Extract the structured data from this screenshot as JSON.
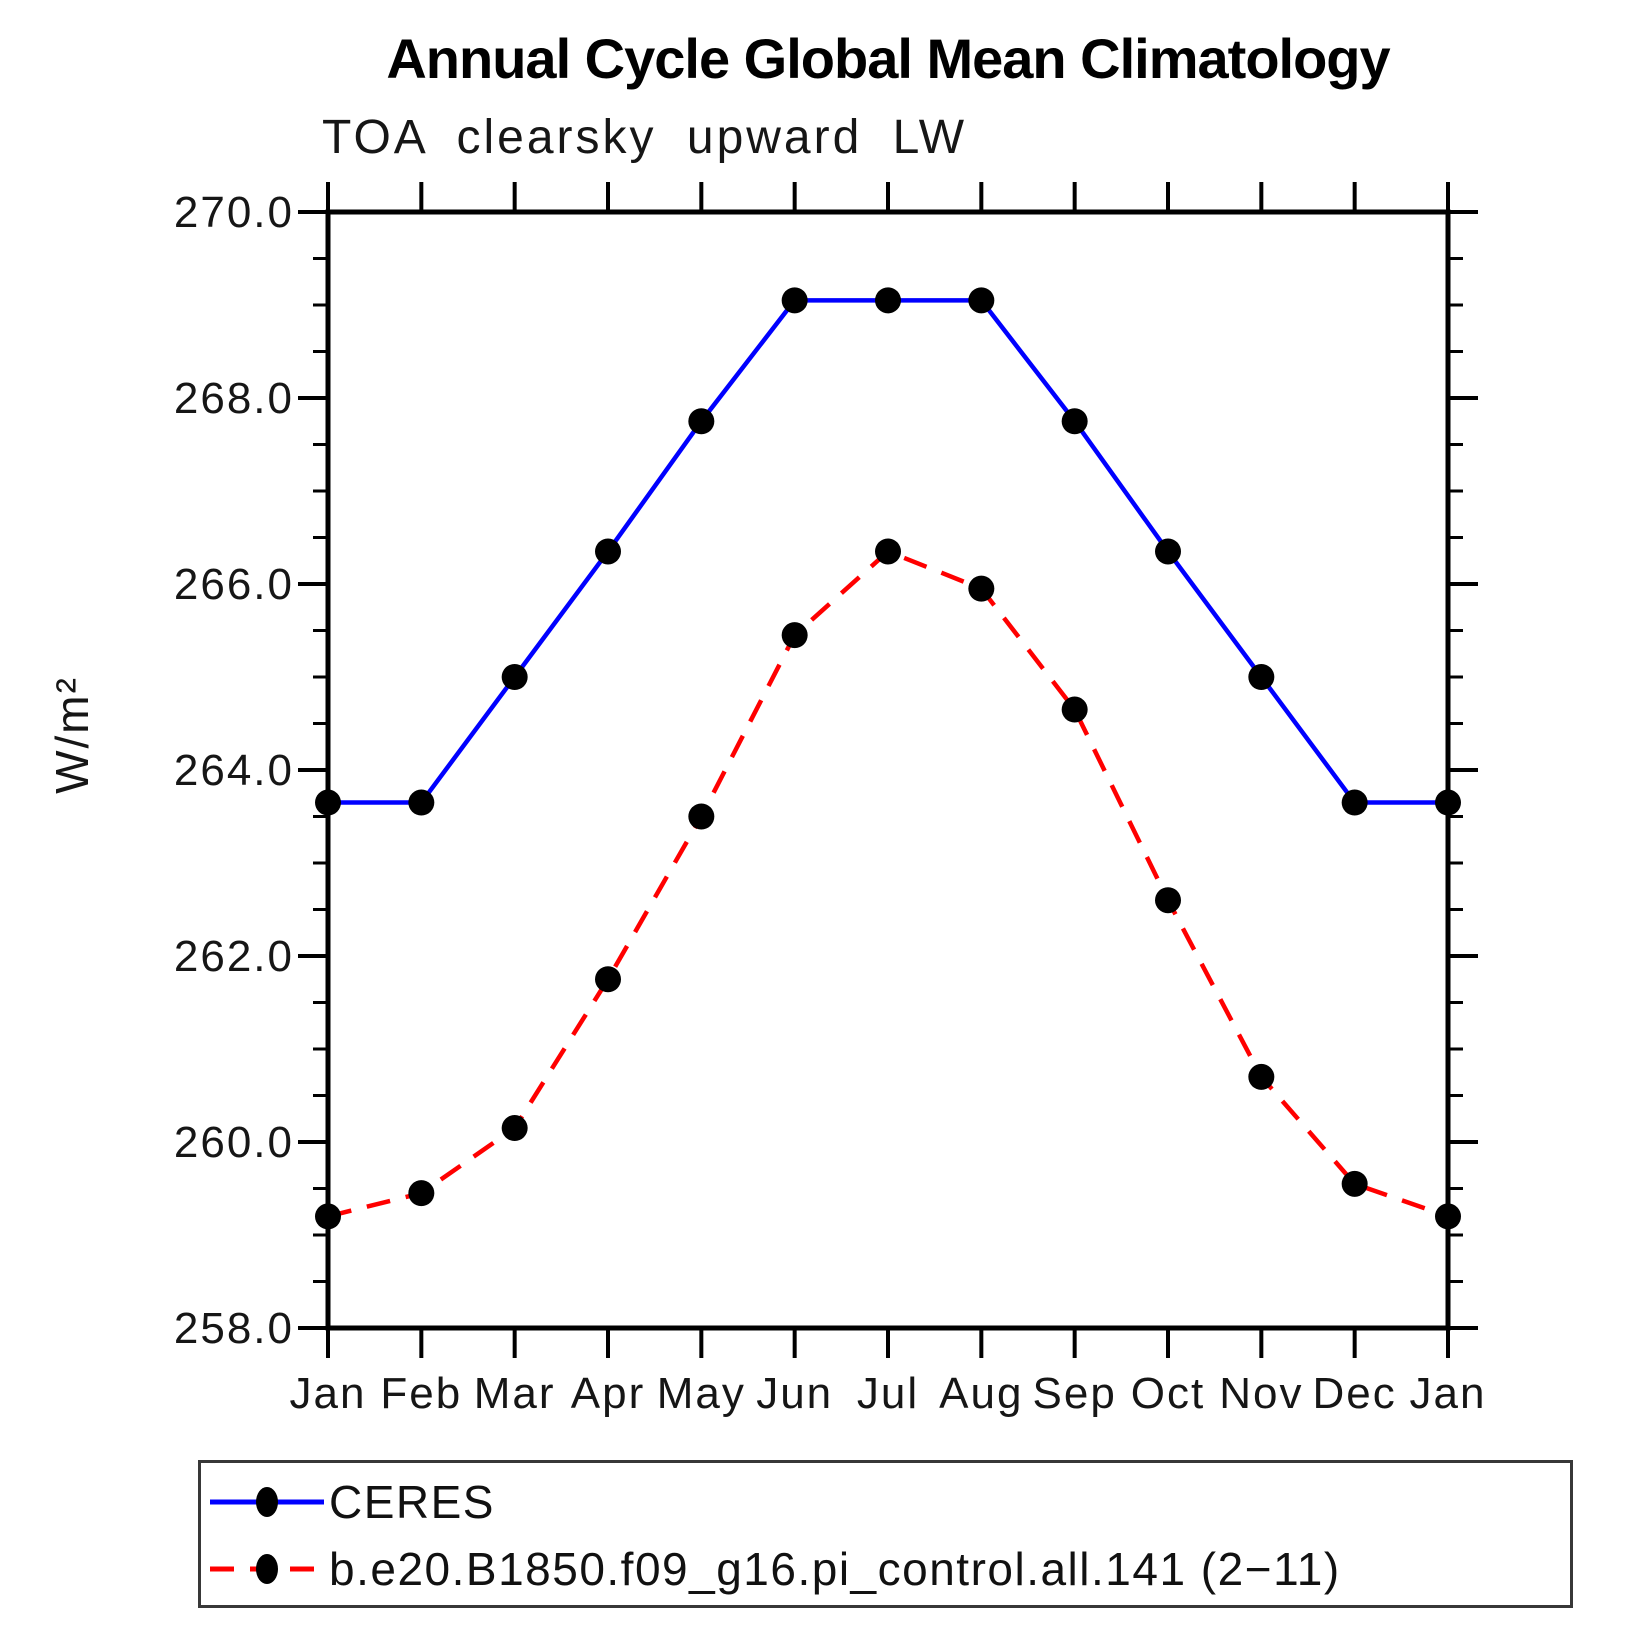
{
  "chart_data": {
    "type": "line",
    "title": "Annual Cycle Global Mean Climatology",
    "subtitle": "TOA clearsky upward LW",
    "xlabel": "",
    "ylabel": "W/m²",
    "categories": [
      "Jan",
      "Feb",
      "Mar",
      "Apr",
      "May",
      "Jun",
      "Jul",
      "Aug",
      "Sep",
      "Oct",
      "Nov",
      "Dec",
      "Jan"
    ],
    "ylim": [
      258.0,
      270.0
    ],
    "ytick_major": 2.0,
    "ytick_minor": 0.5,
    "ytick_labels": [
      "258.0",
      "260.0",
      "262.0",
      "264.0",
      "266.0",
      "268.0",
      "270.0"
    ],
    "grid": false,
    "legend_position": "bottom-left-box",
    "axis_color": "#000000",
    "series": [
      {
        "name": "CERES",
        "color": "#0000ff",
        "style": "solid",
        "marker": "filled-circle",
        "marker_color": "#000000",
        "values": [
          263.65,
          263.65,
          265.0,
          266.35,
          267.75,
          269.05,
          269.05,
          269.05,
          267.75,
          266.35,
          265.0,
          263.65,
          263.65
        ]
      },
      {
        "name": "b.e20.B1850.f09_g16.pi_control.all.141 (2−11)",
        "color": "#ff0000",
        "style": "dashed",
        "marker": "filled-circle",
        "marker_color": "#000000",
        "values": [
          259.2,
          259.45,
          260.15,
          261.75,
          263.5,
          265.45,
          266.35,
          265.95,
          264.65,
          262.6,
          260.7,
          259.55,
          259.2
        ]
      }
    ]
  }
}
